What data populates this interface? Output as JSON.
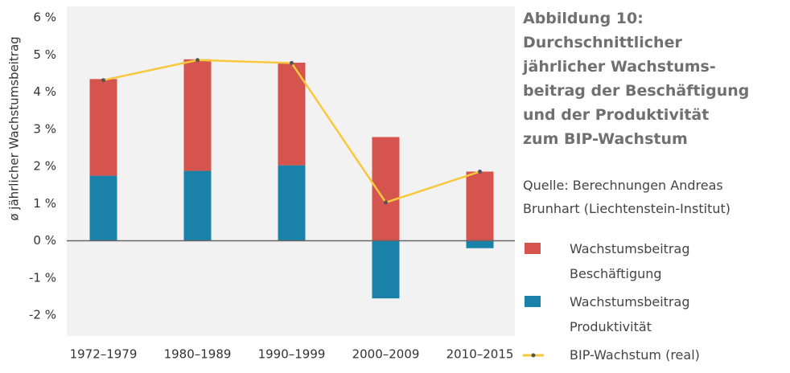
{
  "chart_data": {
    "type": "bar",
    "title": [
      "Abbildung 10:",
      "Durchschnittlicher",
      "jährlicher Wachstums-",
      "beitrag der Beschäftigung",
      "und der Produktivität",
      "zum BIP-Wachstum"
    ],
    "source": "Quelle: Berechnungen Andreas Brunhart (Liechtenstein-Institut)",
    "ylabel": "ø jährlicher Wachstumsbeitrag",
    "categories": [
      "1972–1979",
      "1980–1989",
      "1990–1999",
      "2000–2009",
      "2010–2015"
    ],
    "stacked": true,
    "series": [
      {
        "name": "Wachstumsbeitrag Produktivität",
        "color": "#1a82a9",
        "values": [
          1.75,
          1.88,
          2.03,
          -1.55,
          -0.2
        ]
      },
      {
        "name": "Wachstumsbeitrag Beschäftigung",
        "color": "#d6544e",
        "values": [
          2.6,
          3.0,
          2.76,
          2.79,
          1.86
        ]
      },
      {
        "name": "BIP-Wachstum (real)",
        "type": "line",
        "color": "#f7c83c",
        "marker_color": "#555555",
        "values": [
          4.32,
          4.86,
          4.78,
          1.03,
          1.86
        ]
      }
    ],
    "legend_order": [
      1,
      0,
      2
    ],
    "ylim": [
      -2,
      6
    ],
    "yticks": [
      {
        "value": -2,
        "label": "-2 %"
      },
      {
        "value": -1,
        "label": "-1 %"
      },
      {
        "value": 0,
        "label": "0 %"
      },
      {
        "value": 1,
        "label": "1 %"
      },
      {
        "value": 2,
        "label": "2 %"
      },
      {
        "value": 3,
        "label": "3 %"
      },
      {
        "value": 4,
        "label": "4 %"
      },
      {
        "value": 5,
        "label": "5 %"
      },
      {
        "value": 6,
        "label": "6 %"
      }
    ],
    "grid": false
  }
}
